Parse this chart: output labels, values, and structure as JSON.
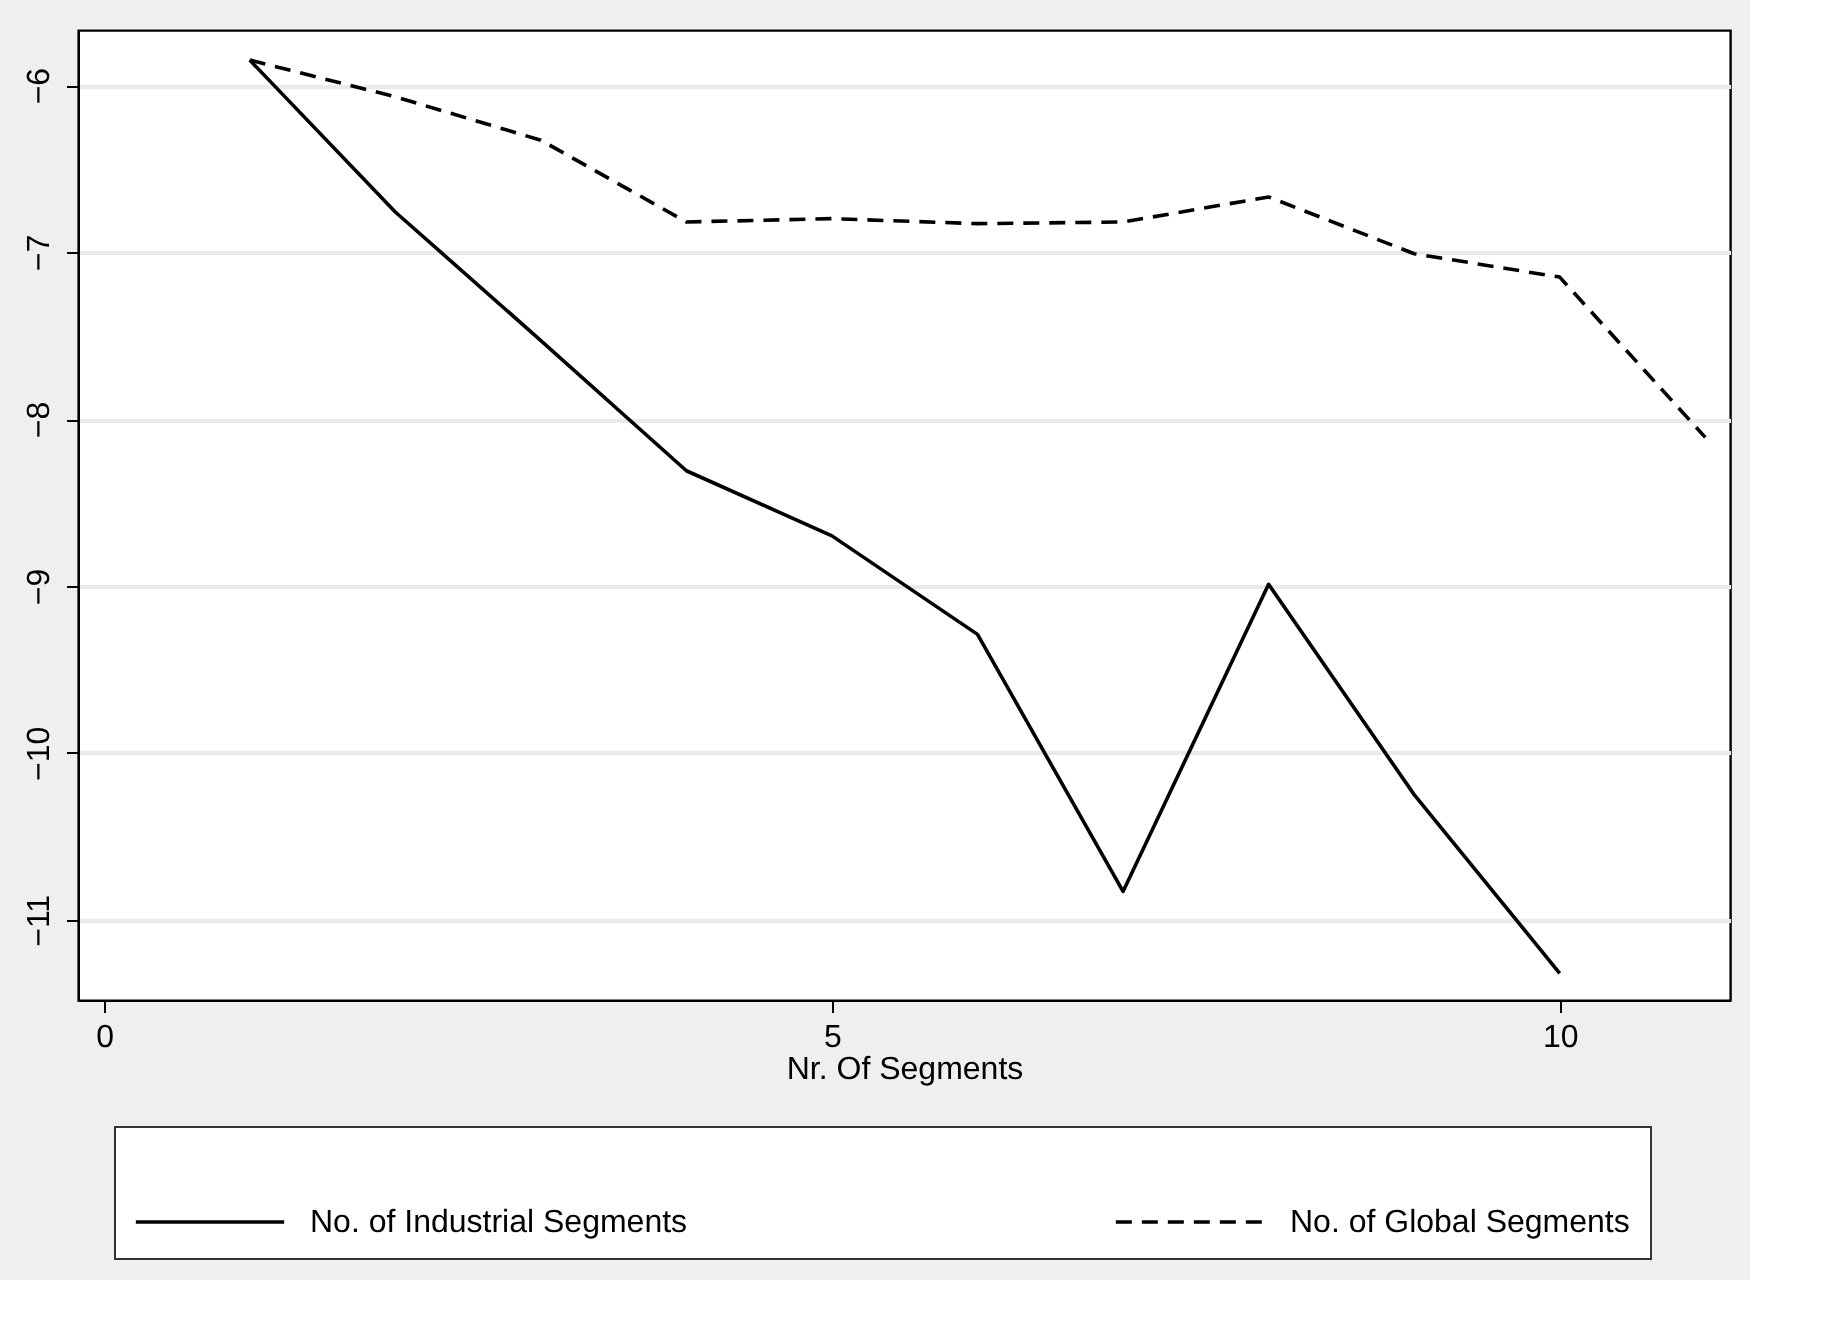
{
  "chart_data": {
    "type": "line",
    "xlabel": "Nr. Of Segments",
    "x": [
      1,
      2,
      3,
      4,
      5,
      6,
      7,
      8,
      9,
      10,
      11
    ],
    "series": [
      {
        "name": "No. of Industrial Segments",
        "color": "#000000",
        "line_style": "solid",
        "values": [
          -5.85,
          -6.76,
          -7.53,
          -8.31,
          -8.7,
          -9.29,
          -10.83,
          -8.99,
          -10.25,
          -11.32,
          null
        ]
      },
      {
        "name": "No. of Global Segments",
        "color": "#000000",
        "line_style": "dashed",
        "values": [
          -5.85,
          -6.07,
          -6.33,
          -6.82,
          -6.8,
          -6.83,
          -6.82,
          -6.67,
          -7.01,
          -7.15,
          -8.11
        ]
      }
    ],
    "xlim": [
      -0.18,
      11.17
    ],
    "xticks": [
      0,
      5,
      10
    ],
    "ylim": [
      -11.48,
      -5.67
    ],
    "yticks": [
      -11,
      -10,
      -9,
      -8,
      -7,
      -6
    ],
    "grid": "y",
    "legend": "bottom",
    "marker": "none"
  }
}
